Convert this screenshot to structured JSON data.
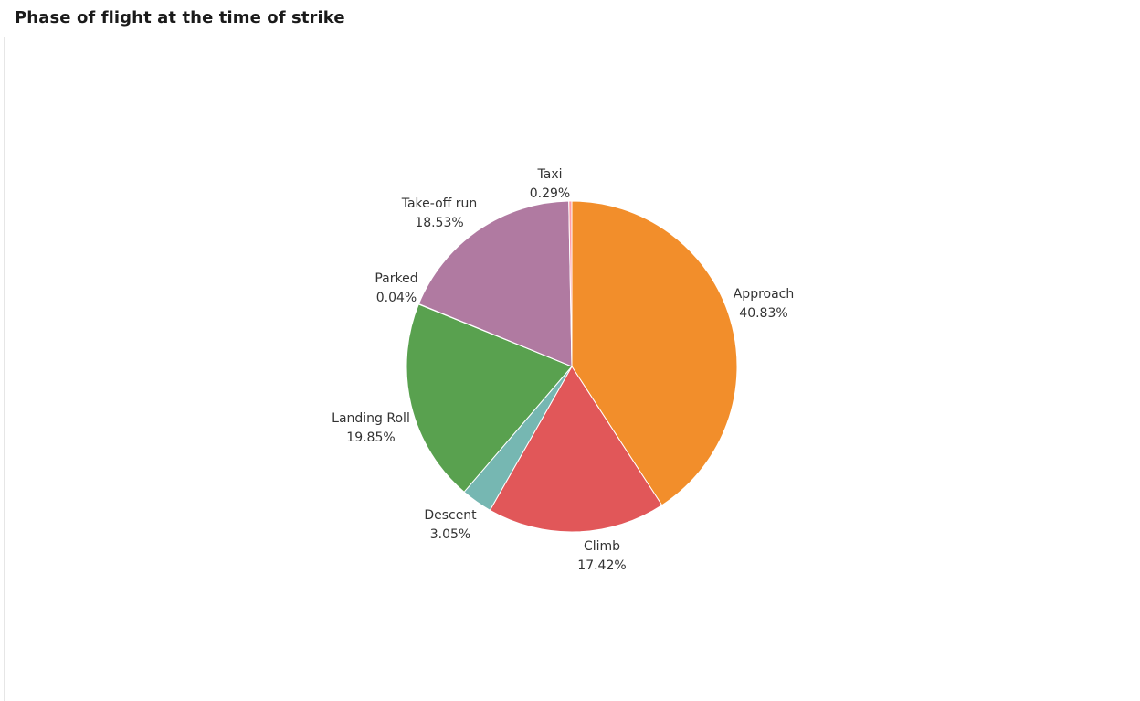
{
  "header": {
    "title": "Phase of flight at the time of strike"
  },
  "chart_data": {
    "type": "pie",
    "title": "Phase of flight at the time of strike",
    "slices": [
      {
        "label": "Approach",
        "value": 40.83,
        "value_label": "40.83%",
        "color": "#f28e2b"
      },
      {
        "label": "Climb",
        "value": 17.42,
        "value_label": "17.42%",
        "color": "#e15759"
      },
      {
        "label": "Descent",
        "value": 3.05,
        "value_label": "3.05%",
        "color": "#76b7b2"
      },
      {
        "label": "Landing Roll",
        "value": 19.85,
        "value_label": "19.85%",
        "color": "#59a14f"
      },
      {
        "label": "Parked",
        "value": 0.04,
        "value_label": "0.04%",
        "color": "#edc948"
      },
      {
        "label": "Take-off run",
        "value": 18.53,
        "value_label": "18.53%",
        "color": "#b07aa1"
      },
      {
        "label": "Taxi",
        "value": 0.29,
        "value_label": "0.29%",
        "color": "#ff9da7"
      }
    ],
    "legend": "none"
  }
}
